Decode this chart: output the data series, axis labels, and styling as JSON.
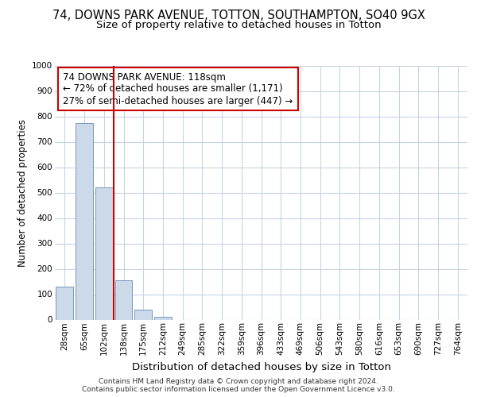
{
  "title_line1": "74, DOWNS PARK AVENUE, TOTTON, SOUTHAMPTON, SO40 9GX",
  "title_line2": "Size of property relative to detached houses in Totton",
  "xlabel": "Distribution of detached houses by size in Totton",
  "ylabel": "Number of detached properties",
  "categories": [
    "28sqm",
    "65sqm",
    "102sqm",
    "138sqm",
    "175sqm",
    "212sqm",
    "249sqm",
    "285sqm",
    "322sqm",
    "359sqm",
    "396sqm",
    "433sqm",
    "469sqm",
    "506sqm",
    "543sqm",
    "580sqm",
    "616sqm",
    "653sqm",
    "690sqm",
    "727sqm",
    "764sqm"
  ],
  "values": [
    130,
    775,
    520,
    155,
    40,
    12,
    0,
    0,
    0,
    0,
    0,
    0,
    0,
    0,
    0,
    0,
    0,
    0,
    0,
    0,
    0
  ],
  "bar_color": "#ccd9e8",
  "bar_edge_color": "#7799bb",
  "vline_x": 2.5,
  "vline_color": "#cc0000",
  "annotation_text": "74 DOWNS PARK AVENUE: 118sqm\n← 72% of detached houses are smaller (1,171)\n27% of semi-detached houses are larger (447) →",
  "annotation_box_color": "#ffffff",
  "annotation_box_edge_color": "#cc0000",
  "ylim": [
    0,
    1000
  ],
  "yticks": [
    0,
    100,
    200,
    300,
    400,
    500,
    600,
    700,
    800,
    900,
    1000
  ],
  "footer_text": "Contains HM Land Registry data © Crown copyright and database right 2024.\nContains public sector information licensed under the Open Government Licence v3.0.",
  "bg_color": "#ffffff",
  "grid_color": "#c8d4e4",
  "title1_fontsize": 10.5,
  "title2_fontsize": 9.5,
  "xlabel_fontsize": 9.5,
  "ylabel_fontsize": 8.5,
  "tick_fontsize": 7.5,
  "annotation_fontsize": 8.5,
  "footer_fontsize": 6.5
}
